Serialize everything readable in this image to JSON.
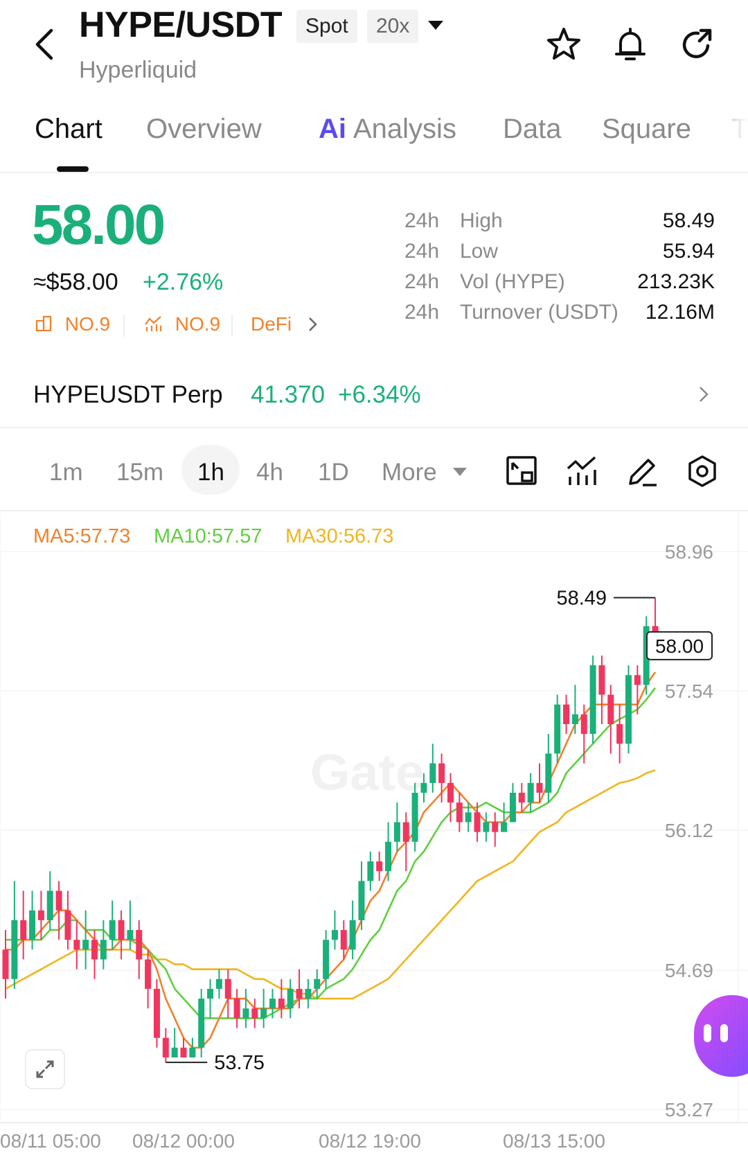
{
  "header": {
    "pair": "HYPE/USDT",
    "market_type": "Spot",
    "leverage": "20x",
    "exchange": "Hyperliquid",
    "icons": [
      "back-chevron-icon",
      "star-icon",
      "bell-icon",
      "share-icon"
    ]
  },
  "tabs": [
    {
      "label": "Chart",
      "active": true
    },
    {
      "label": "Overview"
    },
    {
      "label": "Analysis",
      "prefix": "Ai"
    },
    {
      "label": "Data"
    },
    {
      "label": "Square"
    },
    {
      "label": "T"
    }
  ],
  "price": {
    "last": "58.00",
    "usd": "≈$58.00",
    "change": "+2.76%",
    "rank1": "NO.9",
    "rank2": "NO.9",
    "category": "DeFi",
    "stats": [
      {
        "period": "24h",
        "label": "High",
        "value": "58.49"
      },
      {
        "period": "24h",
        "label": "Low",
        "value": "55.94"
      },
      {
        "period": "24h",
        "label": "Vol (HYPE)",
        "value": "213.23K"
      },
      {
        "period": "24h",
        "label": "Turnover (USDT)",
        "value": "12.16M"
      }
    ]
  },
  "perp": {
    "name": "HYPEUSDT Perp",
    "price": "41.370",
    "change": "+6.34%"
  },
  "intervals": {
    "items": [
      "1m",
      "15m",
      "1h",
      "4h",
      "1D"
    ],
    "active": "1h",
    "more": "More"
  },
  "colors": {
    "up": "#1bb07a",
    "down": "#f0365e",
    "ma5": "#f0822c",
    "ma10": "#5fcf3f",
    "ma30": "#f1b51c",
    "accent": "#f0822c"
  },
  "chart_data": {
    "type": "candlestick",
    "indicators": [
      {
        "name": "MA5",
        "label": "MA5:57.73",
        "value": 57.73
      },
      {
        "name": "MA10",
        "label": "MA10:57.57",
        "value": 57.57
      },
      {
        "name": "MA30",
        "label": "MA30:56.73",
        "value": 56.73
      }
    ],
    "y_ticks": [
      "58.96",
      "57.54",
      "56.12",
      "54.69",
      "53.27"
    ],
    "ylim": [
      53.27,
      58.96
    ],
    "x_ticks": [
      "08/11 05:00",
      "08/12 00:00",
      "08/12 19:00",
      "08/13 15:00"
    ],
    "high_label": "58.49",
    "low_label": "53.75",
    "last_label": "58.00",
    "watermark": "Gate",
    "candles": [
      [
        54.9,
        54.6,
        55.1,
        54.4
      ],
      [
        54.6,
        55.2,
        55.6,
        54.5
      ],
      [
        55.2,
        55.0,
        55.5,
        54.8
      ],
      [
        55.0,
        55.3,
        55.5,
        54.9
      ],
      [
        55.3,
        55.2,
        55.5,
        55.0
      ],
      [
        55.2,
        55.5,
        55.7,
        55.1
      ],
      [
        55.5,
        55.3,
        55.6,
        55.0
      ],
      [
        55.3,
        55.0,
        55.5,
        54.9
      ],
      [
        55.0,
        54.9,
        55.2,
        54.7
      ],
      [
        54.9,
        55.0,
        55.3,
        54.7
      ],
      [
        55.0,
        54.8,
        55.1,
        54.6
      ],
      [
        54.8,
        55.0,
        55.2,
        54.7
      ],
      [
        55.0,
        55.2,
        55.4,
        54.9
      ],
      [
        55.2,
        55.0,
        55.3,
        54.8
      ],
      [
        55.0,
        55.1,
        55.4,
        54.9
      ],
      [
        55.1,
        54.8,
        55.2,
        54.6
      ],
      [
        54.8,
        54.5,
        54.9,
        54.3
      ],
      [
        54.5,
        54.0,
        54.6,
        53.9
      ],
      [
        54.0,
        53.8,
        54.1,
        53.75
      ],
      [
        53.8,
        53.9,
        54.1,
        53.8
      ],
      [
        53.9,
        53.8,
        54.0,
        53.8
      ],
      [
        53.8,
        53.9,
        54.0,
        53.8
      ],
      [
        53.9,
        54.4,
        54.5,
        53.8
      ],
      [
        54.4,
        54.5,
        54.6,
        54.2
      ],
      [
        54.5,
        54.6,
        54.7,
        54.4
      ],
      [
        54.6,
        54.4,
        54.7,
        54.2
      ],
      [
        54.4,
        54.2,
        54.5,
        54.1
      ],
      [
        54.2,
        54.3,
        54.5,
        54.1
      ],
      [
        54.3,
        54.2,
        54.4,
        54.1
      ],
      [
        54.2,
        54.3,
        54.5,
        54.1
      ],
      [
        54.3,
        54.4,
        54.5,
        54.2
      ],
      [
        54.4,
        54.3,
        54.6,
        54.2
      ],
      [
        54.3,
        54.5,
        54.6,
        54.2
      ],
      [
        54.5,
        54.4,
        54.7,
        54.3
      ],
      [
        54.4,
        54.5,
        54.6,
        54.3
      ],
      [
        54.5,
        54.6,
        54.7,
        54.4
      ],
      [
        54.6,
        55.0,
        55.1,
        54.5
      ],
      [
        55.0,
        55.1,
        55.3,
        54.9
      ],
      [
        55.1,
        54.9,
        55.2,
        54.8
      ],
      [
        54.9,
        55.2,
        55.4,
        54.8
      ],
      [
        55.2,
        55.6,
        55.8,
        55.1
      ],
      [
        55.6,
        55.8,
        55.9,
        55.5
      ],
      [
        55.8,
        55.7,
        55.9,
        55.6
      ],
      [
        55.7,
        56.0,
        56.2,
        55.6
      ],
      [
        56.0,
        56.2,
        56.4,
        55.9
      ],
      [
        56.2,
        56.0,
        56.3,
        55.7
      ],
      [
        56.0,
        56.5,
        56.6,
        55.9
      ],
      [
        56.5,
        56.6,
        56.7,
        56.4
      ],
      [
        56.6,
        56.8,
        57.0,
        56.5
      ],
      [
        56.8,
        56.6,
        56.9,
        56.4
      ],
      [
        56.6,
        56.4,
        56.7,
        56.2
      ],
      [
        56.4,
        56.2,
        56.5,
        56.1
      ],
      [
        56.2,
        56.3,
        56.4,
        56.1
      ],
      [
        56.3,
        56.1,
        56.4,
        56.0
      ],
      [
        56.1,
        56.2,
        56.3,
        56.0
      ],
      [
        56.2,
        56.1,
        56.3,
        55.95
      ],
      [
        56.1,
        56.2,
        56.4,
        56.1
      ],
      [
        56.2,
        56.5,
        56.6,
        56.2
      ],
      [
        56.5,
        56.4,
        56.6,
        56.3
      ],
      [
        56.4,
        56.6,
        56.7,
        56.3
      ],
      [
        56.6,
        56.5,
        56.8,
        56.4
      ],
      [
        56.5,
        56.9,
        57.1,
        56.4
      ],
      [
        56.9,
        57.4,
        57.5,
        56.8
      ],
      [
        57.4,
        57.2,
        57.5,
        57.1
      ],
      [
        57.2,
        57.3,
        57.6,
        57.1
      ],
      [
        57.3,
        57.1,
        57.4,
        56.8
      ],
      [
        57.1,
        57.8,
        57.9,
        57.0
      ],
      [
        57.8,
        57.5,
        57.9,
        57.2
      ],
      [
        57.5,
        57.2,
        57.6,
        56.9
      ],
      [
        57.2,
        57.0,
        57.4,
        56.8
      ],
      [
        57.0,
        57.7,
        57.8,
        56.9
      ],
      [
        57.7,
        57.6,
        57.8,
        57.3
      ],
      [
        57.6,
        58.2,
        58.3,
        57.5
      ],
      [
        58.2,
        58.0,
        58.49,
        57.9
      ]
    ],
    "ma5": [
      54.9,
      54.9,
      55.0,
      55.0,
      55.1,
      55.2,
      55.3,
      55.3,
      55.2,
      55.1,
      55.0,
      54.9,
      54.9,
      55.0,
      55.0,
      55.0,
      54.9,
      54.7,
      54.4,
      54.2,
      54.0,
      53.9,
      53.9,
      54.0,
      54.2,
      54.4,
      54.4,
      54.4,
      54.3,
      54.3,
      54.3,
      54.3,
      54.3,
      54.4,
      54.4,
      54.5,
      54.6,
      54.7,
      54.8,
      55.0,
      55.2,
      55.4,
      55.5,
      55.7,
      55.9,
      56.0,
      56.1,
      56.3,
      56.4,
      56.5,
      56.6,
      56.5,
      56.4,
      56.3,
      56.2,
      56.2,
      56.2,
      56.3,
      56.3,
      56.4,
      56.4,
      56.6,
      56.8,
      57.0,
      57.2,
      57.3,
      57.4,
      57.4,
      57.4,
      57.4,
      57.4,
      57.4,
      57.6,
      57.73
    ],
    "ma10": [
      55.0,
      55.0,
      55.0,
      55.0,
      55.0,
      55.1,
      55.1,
      55.2,
      55.2,
      55.1,
      55.1,
      55.1,
      55.0,
      55.0,
      55.0,
      54.95,
      54.9,
      54.8,
      54.7,
      54.5,
      54.4,
      54.3,
      54.2,
      54.2,
      54.2,
      54.2,
      54.2,
      54.2,
      54.2,
      54.2,
      54.25,
      54.3,
      54.35,
      54.4,
      54.4,
      54.4,
      54.5,
      54.55,
      54.6,
      54.7,
      54.85,
      55.0,
      55.1,
      55.3,
      55.5,
      55.6,
      55.8,
      55.9,
      56.05,
      56.2,
      56.3,
      56.35,
      56.35,
      56.35,
      56.4,
      56.35,
      56.3,
      56.3,
      56.3,
      56.3,
      56.35,
      56.4,
      56.5,
      56.7,
      56.8,
      56.9,
      57.0,
      57.1,
      57.2,
      57.25,
      57.3,
      57.35,
      57.45,
      57.57
    ],
    "ma30": [
      54.5,
      54.55,
      54.6,
      54.65,
      54.7,
      54.75,
      54.8,
      54.85,
      54.9,
      54.9,
      54.9,
      54.9,
      54.9,
      54.9,
      54.9,
      54.85,
      54.85,
      54.8,
      54.8,
      54.75,
      54.75,
      54.7,
      54.7,
      54.7,
      54.7,
      54.7,
      54.7,
      54.65,
      54.6,
      54.6,
      54.55,
      54.5,
      54.5,
      54.45,
      54.45,
      54.4,
      54.4,
      54.4,
      54.4,
      54.4,
      54.45,
      54.5,
      54.55,
      54.6,
      54.7,
      54.8,
      54.9,
      55.0,
      55.1,
      55.2,
      55.3,
      55.4,
      55.5,
      55.6,
      55.65,
      55.7,
      55.75,
      55.8,
      55.9,
      56.0,
      56.1,
      56.15,
      56.2,
      56.3,
      56.35,
      56.4,
      56.45,
      56.5,
      56.55,
      56.6,
      56.62,
      56.65,
      56.7,
      56.73
    ]
  }
}
